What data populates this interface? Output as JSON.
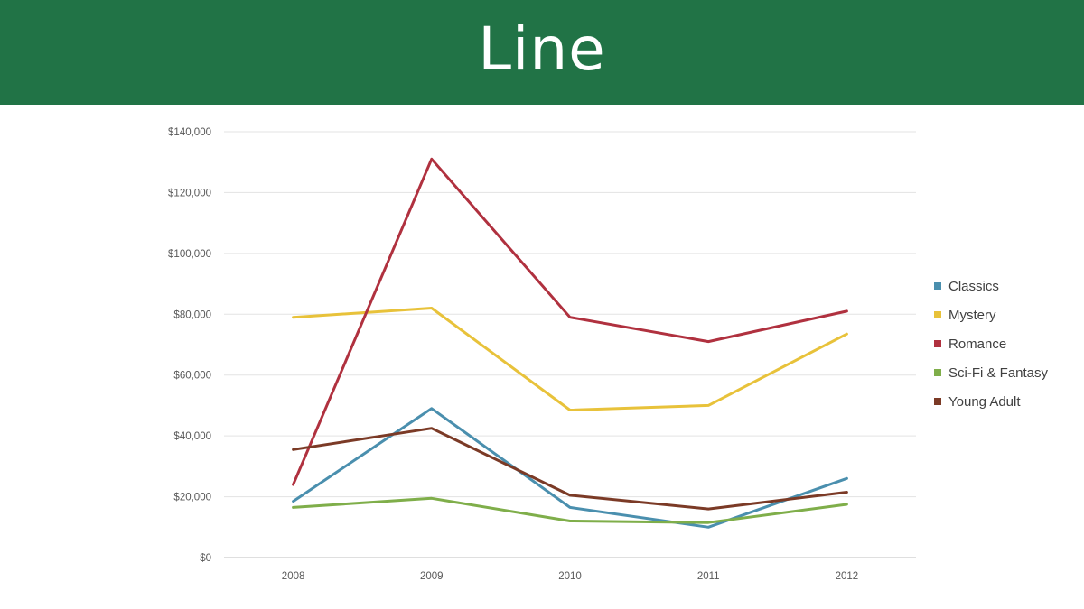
{
  "title": "Line",
  "colors": {
    "banner": "#217346",
    "Classics": "#4a8fae",
    "Mystery": "#e8c23a",
    "Romance": "#b0313f",
    "Sci-Fi & Fantasy": "#7fae4a",
    "Young Adult": "#7b3a26"
  },
  "chart_data": {
    "type": "line",
    "title": "",
    "xlabel": "",
    "ylabel": "",
    "x": [
      "2008",
      "2009",
      "2010",
      "2011",
      "2012"
    ],
    "ylim": [
      0,
      140000
    ],
    "y_ticks": [
      "$0",
      "$20,000",
      "$40,000",
      "$60,000",
      "$80,000",
      "$100,000",
      "$120,000",
      "$140,000"
    ],
    "grid": true,
    "legend": "right",
    "series": [
      {
        "name": "Classics",
        "values": [
          18500,
          49000,
          16500,
          10000,
          26000
        ]
      },
      {
        "name": "Mystery",
        "values": [
          79000,
          82000,
          48500,
          50000,
          73500
        ]
      },
      {
        "name": "Romance",
        "values": [
          24000,
          131000,
          79000,
          71000,
          81000
        ]
      },
      {
        "name": "Sci-Fi & Fantasy",
        "values": [
          16500,
          19500,
          12000,
          11500,
          17500
        ]
      },
      {
        "name": "Young Adult",
        "values": [
          35500,
          42500,
          20500,
          16000,
          21500
        ]
      }
    ]
  }
}
